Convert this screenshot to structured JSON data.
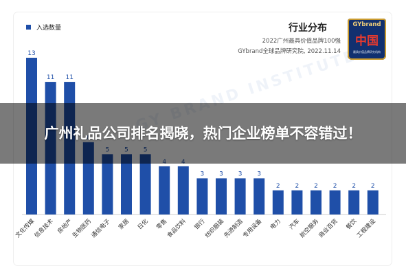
{
  "legend": {
    "label": "入选数量",
    "color": "#1f4fa8"
  },
  "header": {
    "title": "行业分布",
    "source_line1": "2022广州最具价值品牌100强",
    "source_line2": "GYbrand全球品牌研究院, 2022.11.14"
  },
  "badge": {
    "top": "GYbrand",
    "main": "中国",
    "small": "最具价值品牌研究机构"
  },
  "watermark": "GY BRAND INSTITUTE",
  "overlay": {
    "headline": "广州礼品公司排名揭晓，热门企业榜单不容错过！"
  },
  "chart_data": {
    "type": "bar",
    "categories": [
      "文化传媒",
      "信息技术",
      "房地产",
      "生物医药",
      "通信电子",
      "家居",
      "日化",
      "零售",
      "食品饮料",
      "银行",
      "纺织服装",
      "先进制造",
      "专用设备",
      "电力",
      "汽车",
      "航空服务",
      "商业百货",
      "餐饮",
      "工程建设"
    ],
    "series": [
      {
        "name": "入选数量",
        "values": [
          13,
          11,
          11,
          6,
          5,
          5,
          5,
          4,
          4,
          3,
          3,
          3,
          3,
          2,
          2,
          2,
          2,
          2,
          2
        ]
      }
    ],
    "ylim": [
      0,
      13
    ],
    "colors": {
      "bar": "#1f4fa8",
      "label": "#1f4fa8"
    },
    "grid": false,
    "legend_position": "top-left"
  }
}
